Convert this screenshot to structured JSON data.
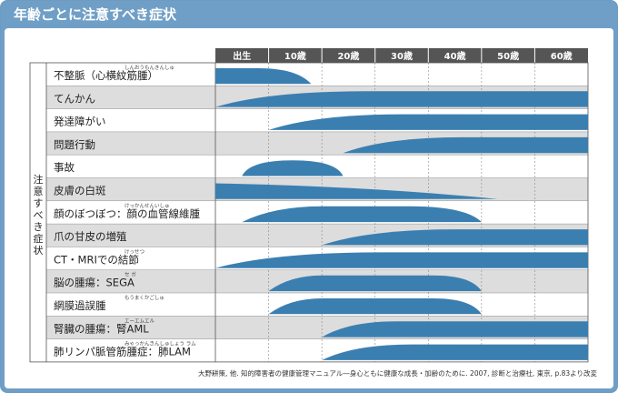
{
  "title": "年齢ごとに注意すべき症状",
  "category_label": "注意すべき症状",
  "headers": [
    "出生",
    "10歳",
    "20歳",
    "30歳",
    "40歳",
    "50歳",
    "60歳"
  ],
  "rows": [
    {
      "label": "不整脈（心横紋筋腫）",
      "ruby": "しんおうもんきんしゅ",
      "onset": 0,
      "peak": 0,
      "end": 18,
      "shape": "fall"
    },
    {
      "label": "てんかん",
      "ruby": "",
      "onset": 0,
      "peak": 20,
      "end": 70,
      "shape": "rise"
    },
    {
      "label": "発達障がい",
      "ruby": "",
      "onset": 10,
      "peak": 28,
      "end": 70,
      "shape": "rise"
    },
    {
      "label": "問題行動",
      "ruby": "",
      "onset": 24,
      "peak": 40,
      "end": 70,
      "shape": "rise"
    },
    {
      "label": "事故",
      "ruby": "",
      "onset": 5,
      "peak": 12,
      "end": 24,
      "shape": "hump"
    },
    {
      "label": "皮膚の白斑",
      "ruby": "",
      "onset": 0,
      "peak": 0,
      "end": 53,
      "shape": "fall"
    },
    {
      "label": "顔のぼつぼつ：顔の血管線維腫",
      "ruby": "けっかんせんいしゅ",
      "onset": 5,
      "peak": 20,
      "end": 50,
      "shape": "hump"
    },
    {
      "label": "爪の甘皮の増殖",
      "ruby": "",
      "onset": 20,
      "peak": 38,
      "end": 70,
      "shape": "rise"
    },
    {
      "label": "CT・MRIでの結節",
      "ruby": "けっせつ",
      "onset": 0,
      "peak": 22,
      "end": 70,
      "shape": "rise"
    },
    {
      "label": "脳の腫瘍：SEGA",
      "ruby": "セ ガ",
      "onset": 10,
      "peak": 20,
      "end": 50,
      "shape": "hump"
    },
    {
      "label": "網膜過誤腫",
      "ruby": "もうまくかごしゅ",
      "onset": 10,
      "peak": 20,
      "end": 50,
      "shape": "hump"
    },
    {
      "label": "腎臓の腫瘍：腎AML",
      "ruby": "エーエムエル",
      "onset": 20,
      "peak": 30,
      "end": 70,
      "shape": "rise"
    },
    {
      "label": "肺リンパ脈管筋腫症：肺LAM",
      "ruby": "みゃっかんきんしゅしょう ラム",
      "onset": 20,
      "peak": 32,
      "end": 70,
      "shape": "rise"
    }
  ],
  "source": "大野耕策, 他. 知的障害者の健康管理マニュアル―身心ともに健康な成長・加齢のために. 2007, 診断と治療社, 東京, p.83より改変",
  "colors": {
    "frame": "#6f9fc6",
    "header": "#555555",
    "bar": "#3b7fb1",
    "stripe": "#dddddd"
  }
}
